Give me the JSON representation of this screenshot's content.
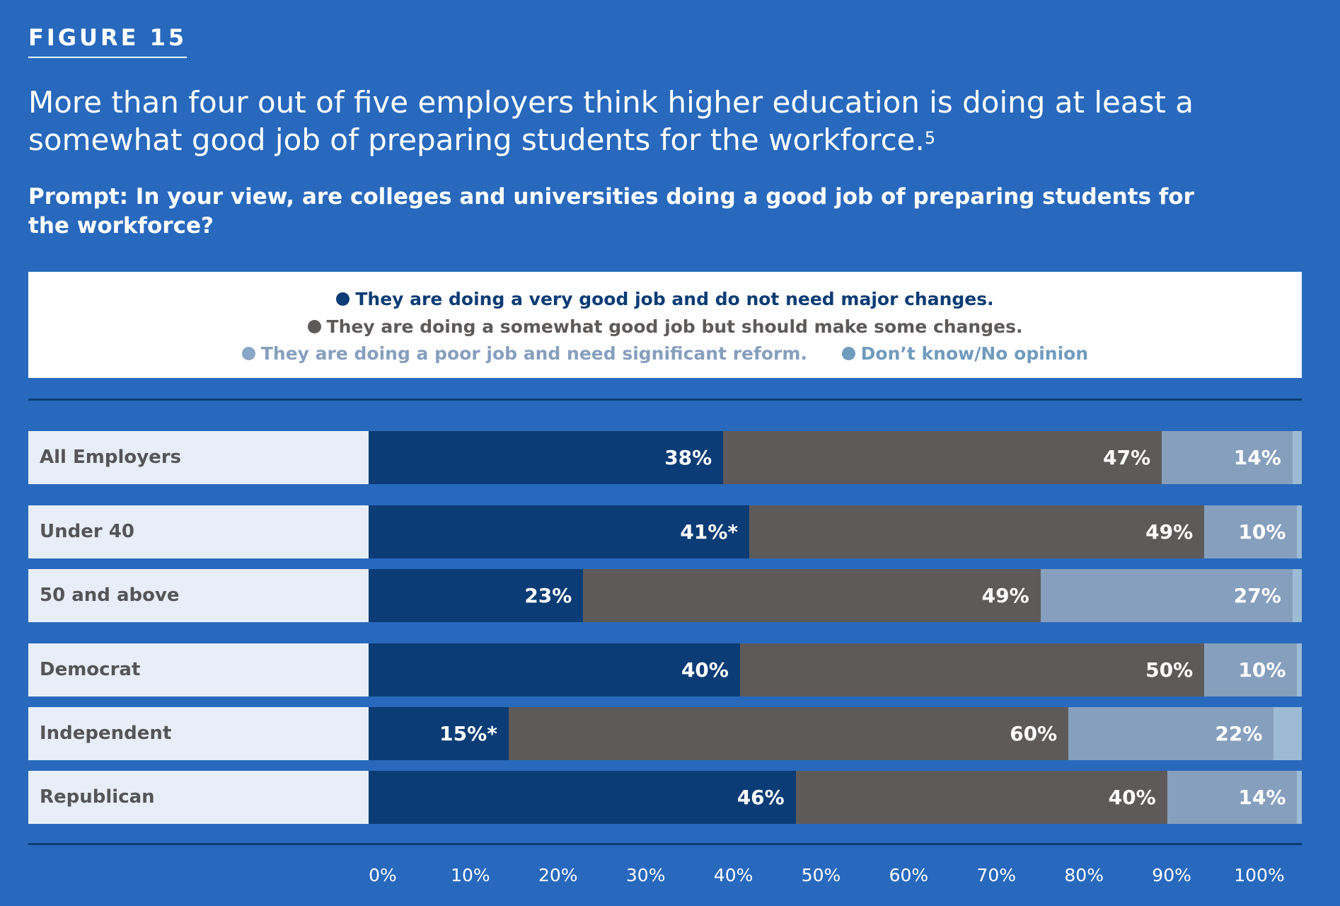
{
  "figure_label": "FIGURE 15",
  "headline": "More than four out of five employers think higher education is doing at least a somewhat good job of preparing students for the workforce.",
  "footnote_mark": "5",
  "prompt": "Prompt: In your view, are colleges and universities doing a good job of preparing students for the workforce?",
  "colors": {
    "background": "#2869bd",
    "very_good": "#0b3c75",
    "somewhat_good": "#5e5a5a",
    "poor": "#869fbd",
    "dont_know": "#9dbbd4",
    "label_bg": "#e8eef7"
  },
  "chart_data": {
    "type": "bar",
    "orientation": "horizontal",
    "stacked": true,
    "categories": [
      "All Employers",
      "Under 40",
      "50 and above",
      "Democrat",
      "Independent",
      "Republican"
    ],
    "series": [
      {
        "name": "They are doing a very good job and do not need major changes.",
        "values": [
          38,
          41,
          23,
          40,
          15,
          46
        ],
        "labels": [
          "38%",
          "41%*",
          "23%",
          "40%",
          "15%*",
          "46%"
        ]
      },
      {
        "name": "They are doing a somewhat good job but should make some changes.",
        "values": [
          47,
          49,
          49,
          50,
          60,
          40
        ],
        "labels": [
          "47%",
          "49%",
          "49%",
          "50%",
          "60%",
          "40%"
        ]
      },
      {
        "name": "They are doing a poor job and need significant reform.",
        "values": [
          14,
          10,
          27,
          10,
          22,
          14
        ],
        "labels": [
          "14%",
          "10%",
          "27%",
          "10%",
          "22%",
          "14%"
        ]
      },
      {
        "name": "Don’t know/No opinion",
        "values": [
          1,
          0.5,
          1,
          0.5,
          3,
          0.5
        ],
        "labels": [
          "",
          "",
          "",
          "",
          "",
          ""
        ]
      }
    ],
    "xlim": [
      0,
      100
    ],
    "x_ticks": [
      "0%",
      "10%",
      "20%",
      "30%",
      "40%",
      "50%",
      "60%",
      "70%",
      "80%",
      "90%",
      "100%"
    ],
    "legend_position": "top"
  }
}
